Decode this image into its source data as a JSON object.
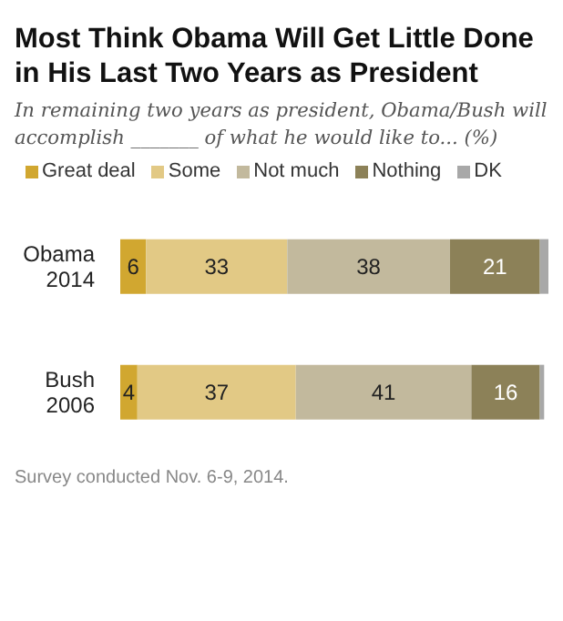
{
  "chart_data": {
    "type": "bar",
    "orientation": "horizontal",
    "stacked": true,
    "title": "Most Think Obama Will Get Little Done in His Last Two Years as President",
    "subtitle": "In remaining two years as president, Obama/Bush will accomplish _______ of what he would like to... (%)",
    "categories": [
      "Obama\n2014",
      "Bush\n2006"
    ],
    "series": [
      {
        "name": "Great deal",
        "color": "#d1a730",
        "values": [
          6,
          4
        ],
        "value_labels": [
          "6",
          "4"
        ]
      },
      {
        "name": "Some",
        "color": "#e2c985",
        "values": [
          33,
          37
        ],
        "value_labels": [
          "33",
          "37"
        ]
      },
      {
        "name": "Not much",
        "color": "#c2b99d",
        "values": [
          38,
          41
        ],
        "value_labels": [
          "38",
          "41"
        ]
      },
      {
        "name": "Nothing",
        "color": "#8c8158",
        "values": [
          21,
          16
        ],
        "value_labels": [
          "21",
          "16"
        ]
      },
      {
        "name": "DK",
        "color": "#a8a8a8",
        "values": [
          2,
          1
        ],
        "value_labels": [
          null,
          null
        ]
      }
    ],
    "legend": "top",
    "annotations": [
      "Survey conducted Nov. 6-9, 2014."
    ]
  }
}
